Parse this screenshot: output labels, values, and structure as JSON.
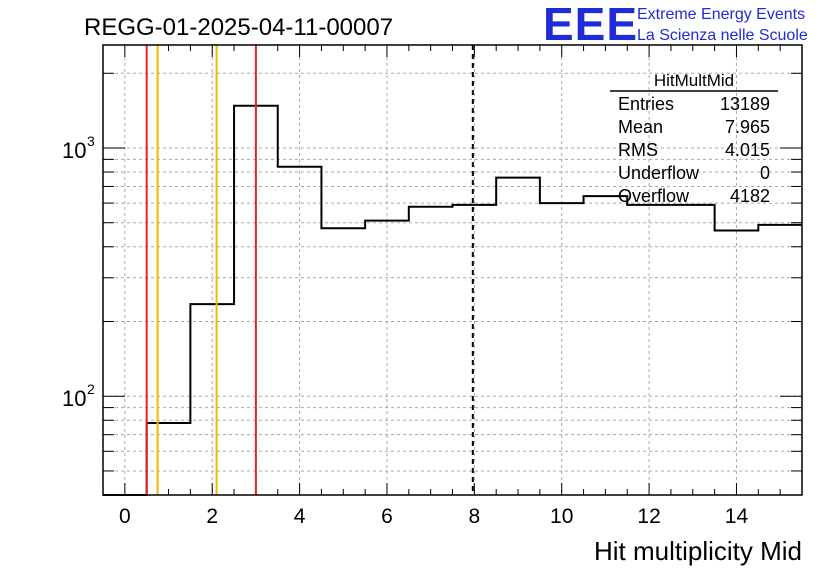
{
  "header": {
    "run_title": "REGG-01-2025-04-11-00007",
    "logo_text": "EEE",
    "logo_line1": "Extreme Energy Events",
    "logo_line2": "La Scienza nelle Scuole"
  },
  "stats": {
    "title": "HitMultMid",
    "rows": [
      {
        "label": "Entries",
        "value": "13189"
      },
      {
        "label": "Mean",
        "value": "7.965"
      },
      {
        "label": "RMS",
        "value": "4.015"
      },
      {
        "label": "Underflow",
        "value": "0"
      },
      {
        "label": "Overflow",
        "value": "4182"
      }
    ]
  },
  "chart_data": {
    "type": "histogram",
    "title": "REGG-01-2025-04-11-00007",
    "xlabel": "Hit multiplicity Mid",
    "ylabel": "",
    "xlim": [
      -0.5,
      15.5
    ],
    "ylim": [
      40,
      2600
    ],
    "ylog": true,
    "grid": true,
    "x_ticks": [
      0,
      2,
      4,
      6,
      8,
      10,
      12,
      14
    ],
    "x_tick_labels": [
      "0",
      "2",
      "4",
      "6",
      "8",
      "10",
      "12",
      "14"
    ],
    "y_tick_labels": [
      {
        "base": "10",
        "exp": "2",
        "value": 100
      },
      {
        "base": "10",
        "exp": "3",
        "value": 1000
      }
    ],
    "bin_edges": [
      -0.5,
      0.5,
      1.5,
      2.5,
      3.5,
      4.5,
      5.5,
      6.5,
      7.5,
      8.5,
      9.5,
      10.5,
      11.5,
      12.5,
      13.5,
      14.5,
      15.5
    ],
    "values": [
      0,
      78,
      235,
      1480,
      840,
      475,
      510,
      580,
      590,
      760,
      600,
      640,
      590,
      590,
      465,
      490
    ],
    "vertical_lines": [
      {
        "x": 0.5,
        "color": "#e8202a",
        "style": "solid"
      },
      {
        "x": 0.75,
        "color": "#f5b800",
        "style": "solid"
      },
      {
        "x": 2.1,
        "color": "#f5b800",
        "style": "solid"
      },
      {
        "x": 3.0,
        "color": "#e8202a",
        "style": "solid"
      },
      {
        "x": 7.965,
        "color": "#000000",
        "style": "dashed"
      }
    ],
    "legend_position": "top-right"
  }
}
